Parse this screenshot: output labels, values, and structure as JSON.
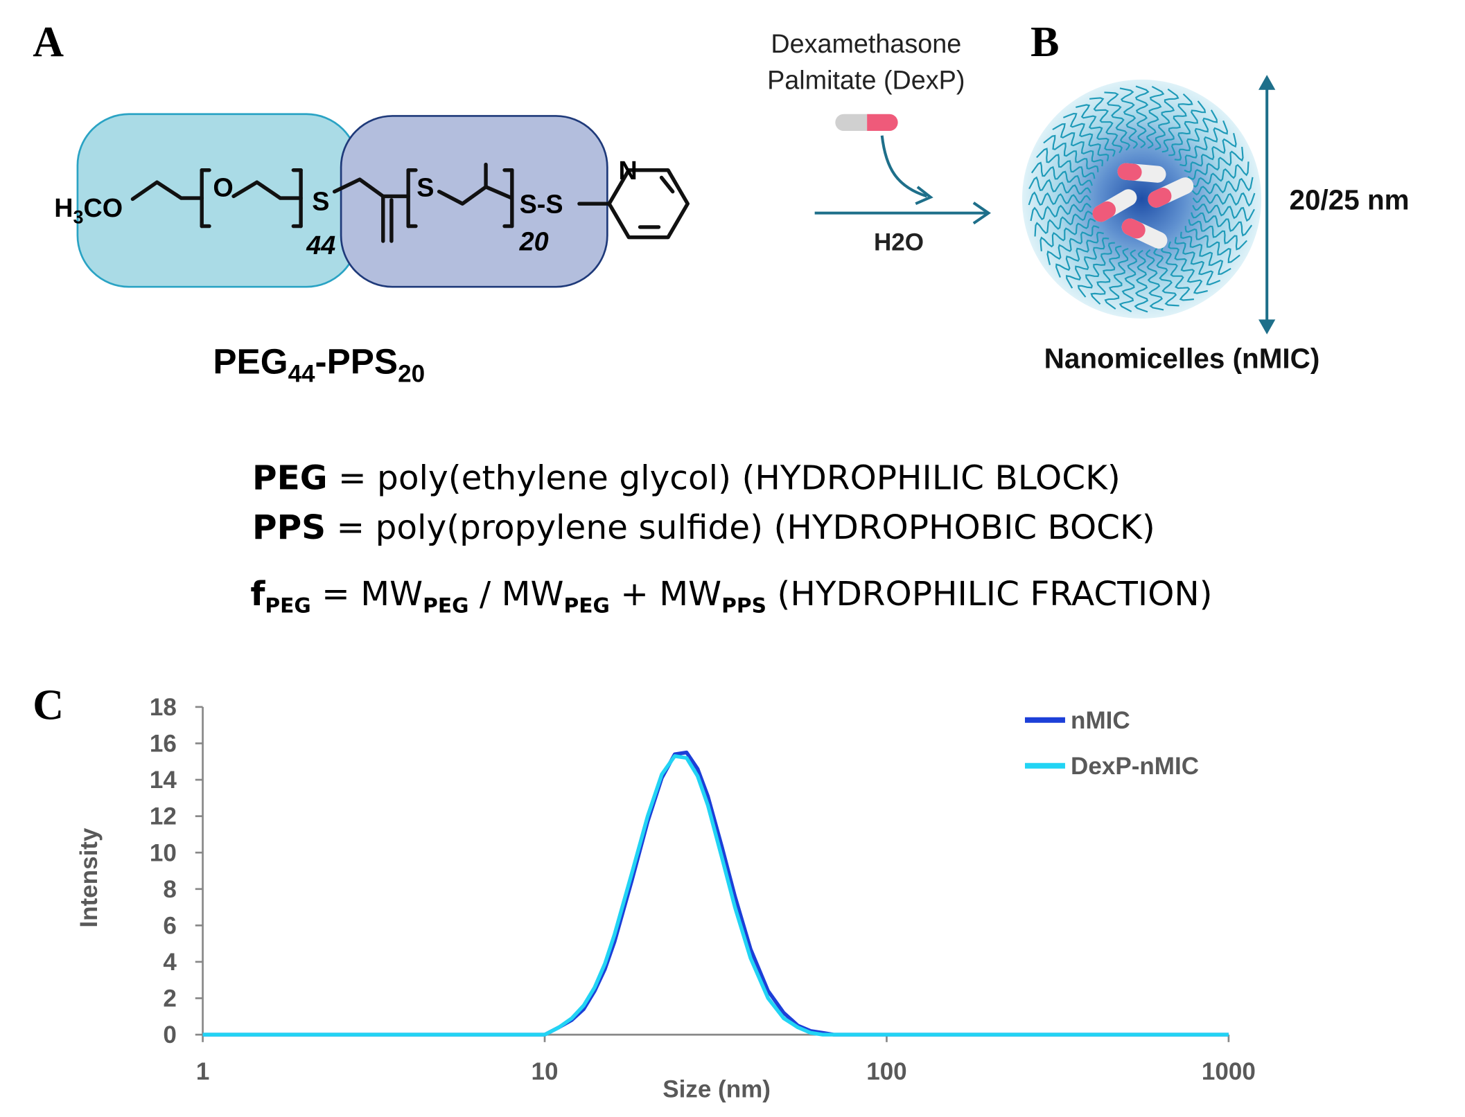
{
  "panels": {
    "a": "A",
    "b": "B",
    "c": "C"
  },
  "structure": {
    "methoxy": [
      "H",
      "3",
      "CO"
    ],
    "oxygen": "O",
    "sulfur1": "S",
    "sulfur2": "S",
    "disulfide": "S-S",
    "nitrogen": "N",
    "peg_repeat": "44",
    "pps_repeat": "20"
  },
  "polymer_label": [
    "PEG",
    "44",
    "-PPS",
    "20"
  ],
  "scheme": {
    "drug_line1": "Dexamethasone",
    "drug_line2": "Palmitate (DexP)",
    "solvent": "H2O",
    "size": "20/25 nm",
    "product": "Nanomicelles (nMIC)"
  },
  "definitions": [
    {
      "term": "PEG",
      "text": " = poly(ethylene glycol) (HYDROPHILIC BLOCK)"
    },
    {
      "term": "PPS",
      "text": " = poly(propylene sulfide) (HYDROPHOBIC BOCK)"
    }
  ],
  "fraction": [
    "f",
    "PEG",
    " = MW",
    "PEG",
    " / MW",
    "PEG",
    " + MW",
    "PPS",
    " (HYDROPHILIC FRACTION)"
  ],
  "chart_data": {
    "type": "line",
    "xlabel": "Size (nm)",
    "ylabel": "Intensity",
    "xscale": "log",
    "xlim": [
      1,
      1000
    ],
    "xticks": [
      1,
      10,
      100,
      1000
    ],
    "ylim": [
      0,
      18
    ],
    "yticks": [
      0,
      2,
      4,
      6,
      8,
      10,
      12,
      14,
      16,
      18
    ],
    "x": [
      1,
      10,
      11,
      12,
      13,
      14,
      15,
      16,
      18,
      20,
      22,
      24,
      26,
      28,
      30,
      33,
      36,
      40,
      45,
      50,
      55,
      60,
      65,
      70,
      100,
      1000
    ],
    "series": [
      {
        "name": "nMIC",
        "color": "#1c3fd8",
        "values": [
          0,
          0,
          0.4,
          0.8,
          1.4,
          2.4,
          3.6,
          5.1,
          8.5,
          11.7,
          14.1,
          15.4,
          15.5,
          14.6,
          13.1,
          10.3,
          7.6,
          4.7,
          2.4,
          1.2,
          0.5,
          0.2,
          0.1,
          0,
          0,
          0
        ]
      },
      {
        "name": "DexP-nMIC",
        "color": "#22d4f4",
        "values": [
          0,
          0,
          0.4,
          0.9,
          1.6,
          2.6,
          3.9,
          5.5,
          8.9,
          12.0,
          14.3,
          15.3,
          15.2,
          14.2,
          12.6,
          9.7,
          7.0,
          4.2,
          2.0,
          0.9,
          0.4,
          0.1,
          0,
          0,
          0,
          0
        ]
      }
    ]
  }
}
